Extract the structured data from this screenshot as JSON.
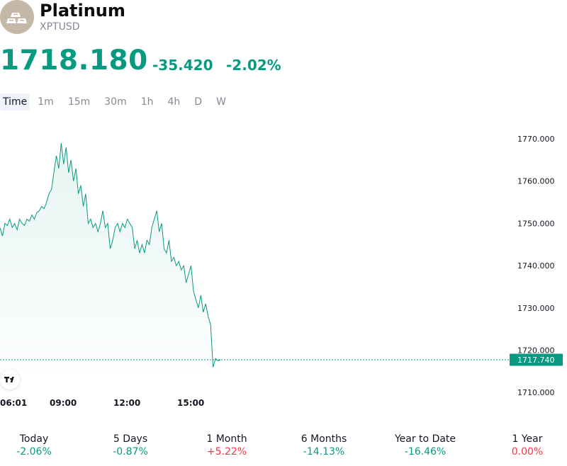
{
  "header": {
    "title": "Platinum",
    "ticker": "XPTUSD",
    "price": "1718.180",
    "change": "-35.420",
    "change_pct": "-2.02%"
  },
  "intervals": [
    "Time",
    "1m",
    "15m",
    "30m",
    "1h",
    "4h",
    "D",
    "W"
  ],
  "active_interval": "Time",
  "colors": {
    "line": "#089981",
    "negative": "#f23645",
    "positive": "#089981"
  },
  "chart_data": {
    "type": "area",
    "y_ticks": [
      "1770.000",
      "1760.000",
      "1750.000",
      "1740.000",
      "1730.000",
      "1720.000",
      "1710.000"
    ],
    "ylim": [
      1710,
      1772
    ],
    "x_ticks": [
      "06:01",
      "09:00",
      "12:00",
      "15:00"
    ],
    "last_price_label": "1717.740",
    "last_price": 1717.74,
    "series": [
      {
        "values": [
          1749,
          1747,
          1750,
          1749.5,
          1751,
          1749,
          1750,
          1748.5,
          1751,
          1750,
          1749.5,
          1751,
          1750.5,
          1752,
          1751,
          1752.5,
          1753,
          1754,
          1753.5,
          1755,
          1757,
          1758,
          1762,
          1766,
          1763,
          1769,
          1764,
          1768,
          1762,
          1765,
          1760,
          1763,
          1757,
          1759,
          1754,
          1757,
          1750,
          1751,
          1749,
          1750,
          1748,
          1750,
          1753,
          1749,
          1750,
          1744,
          1746,
          1749,
          1750,
          1748,
          1750,
          1749,
          1751,
          1750,
          1749,
          1744,
          1746,
          1743,
          1745,
          1743,
          1746,
          1745,
          1749,
          1751,
          1753,
          1748,
          1750,
          1744,
          1743,
          1746,
          1741,
          1742,
          1740,
          1741,
          1739,
          1740,
          1736,
          1738,
          1740,
          1734,
          1732,
          1730,
          1733,
          1729,
          1731,
          1728,
          1726,
          1716,
          1718,
          1717.5,
          1717.74
        ]
      }
    ]
  },
  "performance": [
    {
      "label": "Today",
      "value": "-2.06%",
      "sign": "pos"
    },
    {
      "label": "5 Days",
      "value": "-0.87%",
      "sign": "pos"
    },
    {
      "label": "1 Month",
      "value": "+5.22%",
      "sign": "neg"
    },
    {
      "label": "6 Months",
      "value": "-14.13%",
      "sign": "pos"
    },
    {
      "label": "Year to Date",
      "value": "-16.46%",
      "sign": "pos"
    },
    {
      "label": "1 Year",
      "value": "0.00%",
      "sign": "neg"
    }
  ]
}
